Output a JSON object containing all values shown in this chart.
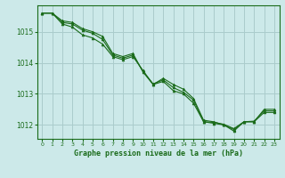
{
  "title": "Graphe pression niveau de la mer (hPa)",
  "bg_color": "#cce9e9",
  "grid_color": "#aacccc",
  "line_color": "#1a6b1a",
  "marker_color": "#1a6b1a",
  "xlim": [
    -0.5,
    23.5
  ],
  "ylim": [
    1011.55,
    1015.85
  ],
  "yticks": [
    1012,
    1013,
    1014,
    1015
  ],
  "xticks": [
    0,
    1,
    2,
    3,
    4,
    5,
    6,
    7,
    8,
    9,
    10,
    11,
    12,
    13,
    14,
    15,
    16,
    17,
    18,
    19,
    20,
    21,
    22,
    23
  ],
  "series": [
    [
      1015.6,
      1015.6,
      1015.35,
      1015.3,
      1015.1,
      1015.0,
      1014.85,
      1014.3,
      1014.2,
      1014.3,
      1013.7,
      1013.3,
      1013.5,
      1013.3,
      1013.15,
      1012.85,
      1012.15,
      1012.1,
      1012.0,
      1011.8,
      1012.1,
      1012.1,
      1012.5,
      1012.5
    ],
    [
      1015.6,
      1015.6,
      1015.25,
      1015.15,
      1014.9,
      1014.8,
      1014.6,
      1014.2,
      1014.1,
      1014.2,
      1013.75,
      1013.3,
      1013.4,
      1013.1,
      1013.0,
      1012.7,
      1012.1,
      1012.05,
      1012.0,
      1011.85,
      1012.1,
      1012.1,
      1012.4,
      1012.4
    ],
    [
      1015.6,
      1015.6,
      1015.3,
      1015.25,
      1015.05,
      1014.95,
      1014.75,
      1014.25,
      1014.15,
      1014.25,
      1013.72,
      1013.32,
      1013.45,
      1013.2,
      1013.05,
      1012.8,
      1012.1,
      1012.08,
      1012.02,
      1011.88,
      1012.1,
      1012.12,
      1012.45,
      1012.45
    ]
  ]
}
